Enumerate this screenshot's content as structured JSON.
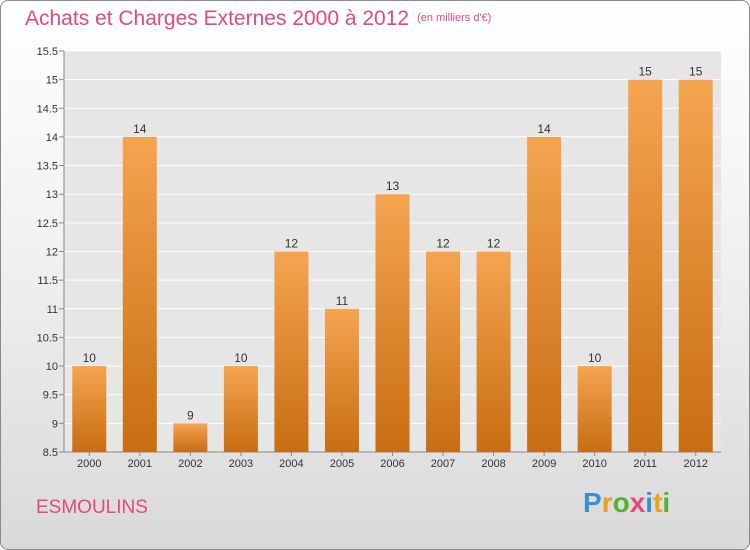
{
  "title": "Achats et Charges Externes 2000 à 2012",
  "subtitle": "(en milliers d'€)",
  "commune": "ESMOULINS",
  "logo": {
    "letters": [
      "P",
      "r",
      "o",
      "x",
      "i",
      "t",
      "i"
    ],
    "colors": [
      "#3a8fd4",
      "#e9a21a",
      "#58b030",
      "#e4497e",
      "#3a8fd4",
      "#e9a21a",
      "#58b030"
    ]
  },
  "colors": {
    "bar_top": "#f5a450",
    "bar_bottom": "#c86d12",
    "title": "#e4497e"
  },
  "chart_data": {
    "type": "bar",
    "categories": [
      "2000",
      "2001",
      "2002",
      "2003",
      "2004",
      "2005",
      "2006",
      "2007",
      "2008",
      "2009",
      "2010",
      "2011",
      "2012"
    ],
    "values": [
      10,
      14,
      9,
      10,
      12,
      11,
      13,
      12,
      12,
      14,
      10,
      15,
      15
    ],
    "value_labels": [
      "10",
      "14",
      "9",
      "10",
      "12",
      "11",
      "13",
      "12",
      "12",
      "14",
      "10",
      "15",
      "15"
    ],
    "ylim": [
      8.5,
      15.5
    ],
    "yticks": [
      8.5,
      9,
      9.5,
      10,
      10.5,
      11,
      11.5,
      12,
      12.5,
      13,
      13.5,
      14,
      14.5,
      15,
      15.5
    ],
    "ytick_labels": [
      "8.5",
      "9",
      "9.5",
      "10",
      "10.5",
      "11",
      "11.5",
      "12",
      "12.5",
      "13",
      "13.5",
      "14",
      "14.5",
      "15",
      "15.5"
    ],
    "grid": true,
    "title": "Achats et Charges Externes 2000 à 2012",
    "xlabel": "",
    "ylabel": ""
  }
}
